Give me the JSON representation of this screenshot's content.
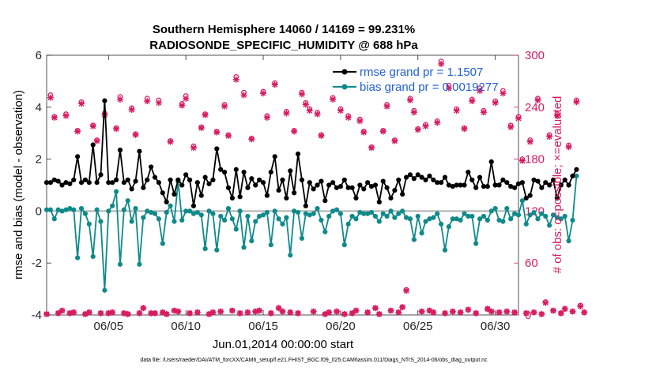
{
  "chart_data": {
    "type": "line",
    "title": [
      "Southern Hemisphere 14060 / 14169 = 99.231%",
      "RADIOSONDE_SPECIFIC_HUMIDITY @ 688 hPa"
    ],
    "xlabel": "Jun.01,2014 00:00:00 start",
    "ylabel_left": "rmse and bias (model - observation)",
    "ylabel_right": "# of obs: o=possible; ×=evaluated",
    "footnote": "data file: /Users/raeder/DAI/ATM_forcXX/CAM6_setup/f.e21.FHIST_BGC.f09_025.CAM6assim.011/Diags_NTrS_2014-06/obs_diag_output.nc",
    "xlim": [
      1,
      31.5
    ],
    "ylim_left": [
      -4,
      6
    ],
    "ylim_right": [
      0,
      300
    ],
    "x_ticks": [
      5,
      10,
      15,
      20,
      25,
      30
    ],
    "x_tick_labels": [
      "06/05",
      "06/10",
      "06/15",
      "06/20",
      "06/25",
      "06/30"
    ],
    "y_left_ticks": [
      -4,
      -2,
      0,
      2,
      4,
      6
    ],
    "y_left_tick_labels": [
      "-4",
      "-2",
      "0",
      "2",
      "4",
      "6"
    ],
    "y_right_ticks": [
      0,
      60,
      120,
      180,
      240,
      300
    ],
    "y_right_tick_labels": [
      "0",
      "60",
      "120",
      "180",
      "240",
      "300"
    ],
    "x_step_days": 0.25,
    "x_start": 1.0,
    "zero_line": 0,
    "colors": {
      "rmse": "#000000",
      "bias": "#0f8a8a",
      "obs": "#d81b60",
      "zero": "#b0b0b0"
    },
    "series": [
      {
        "name": "rmse grand pr = 1.1507",
        "axis": "left",
        "values": [
          1.1,
          1.1,
          1.2,
          1.15,
          1.0,
          1.1,
          1.05,
          1.2,
          2.1,
          1.1,
          1.2,
          1.1,
          2.55,
          1.1,
          1.4,
          4.25,
          1.1,
          1.1,
          1.2,
          2.35,
          1.1,
          1.2,
          0.85,
          1.15,
          2.3,
          0.9,
          1.2,
          1.7,
          1.3,
          1.1,
          0.7,
          0.35,
          1.2,
          0.65,
          1.2,
          1.0,
          1.4,
          1.2,
          0.2,
          1.1,
          0.6,
          1.3,
          1.05,
          1.2,
          2.4,
          1.6,
          1.5,
          0.9,
          0.5,
          1.6,
          0.55,
          1.5,
          0.9,
          1.25,
          1.0,
          1.2,
          1.1,
          0.6,
          1.5,
          2.1,
          0.8,
          1.2,
          0.5,
          1.55,
          0.7,
          2.2,
          1.2,
          0.2,
          1.1,
          0.85,
          1.0,
          1.15,
          0.4,
          1.0,
          1.1,
          0.9,
          0.95,
          1.2,
          0.9,
          0.9,
          0.5,
          1.0,
          0.85,
          1.1,
          0.95,
          1.0,
          0.35,
          1.15,
          0.9,
          0.5,
          0.8,
          1.2,
          0.65,
          1.3,
          1.4,
          1.25,
          1.4,
          1.3,
          1.2,
          1.35,
          1.2,
          1.1,
          1.1,
          1.3,
          1.0,
          0.95,
          1.0,
          1.0,
          1.0,
          1.5,
          1.2,
          0.9,
          1.3,
          0.95,
          0.95,
          1.9,
          1.0,
          1.0,
          1.2,
          1.1,
          0.95,
          0.9,
          1.05,
          1.1,
          0.5,
          0.6,
          1.2,
          1.15,
          0.9,
          1.1,
          1.0,
          1.2,
          0.5,
          1.0,
          1.2,
          1.0,
          1.35,
          1.6
        ]
      },
      {
        "name": "bias grand pr = 0.0019277",
        "axis": "left",
        "values": [
          0.05,
          0.05,
          -0.3,
          0.05,
          0.0,
          0.05,
          0.1,
          0.05,
          -1.8,
          0.1,
          -0.1,
          -0.5,
          -1.75,
          0.05,
          -0.4,
          -3.05,
          0.0,
          0.2,
          0.75,
          -2.05,
          0.05,
          0.4,
          -0.4,
          0.1,
          -2.05,
          -0.25,
          0.0,
          -0.05,
          -0.1,
          -0.3,
          -1.25,
          -0.05,
          0.2,
          -0.4,
          1.15,
          -0.35,
          0.0,
          0.0,
          -0.1,
          -0.05,
          -0.15,
          -1.45,
          0.0,
          -0.1,
          -1.5,
          -0.2,
          -0.35,
          0.1,
          -0.3,
          -0.7,
          0.0,
          -1.4,
          -0.2,
          -1.15,
          -0.4,
          -0.2,
          -0.15,
          -0.05,
          -1.3,
          0.0,
          -0.3,
          -0.5,
          -0.25,
          -1.7,
          0.0,
          -0.05,
          -1.05,
          -0.1,
          -0.15,
          -0.1,
          0.1,
          -0.35,
          -0.8,
          -0.2,
          0.0,
          0.05,
          -0.1,
          -1.3,
          -0.5,
          -0.2,
          -0.3,
          -0.05,
          -0.1,
          -0.1,
          -0.05,
          -0.2,
          -0.4,
          -0.1,
          -0.2,
          0.0,
          -0.25,
          -0.1,
          0.0,
          -0.25,
          -0.3,
          -1.1,
          -0.2,
          -0.85,
          -0.4,
          -0.3,
          -0.25,
          -0.1,
          -0.5,
          -1.5,
          -0.6,
          -0.3,
          -0.3,
          -0.35,
          -0.1,
          -0.2,
          -0.2,
          -1.25,
          -0.3,
          -0.2,
          -0.35,
          0.0,
          0.1,
          -0.35,
          -0.4,
          0.1,
          -0.3,
          -0.1,
          -0.15,
          0.4,
          -0.5,
          -0.15,
          -0.05,
          -0.3,
          -0.1,
          -0.2,
          -0.55,
          -0.15,
          -0.25,
          -0.3,
          -0.2,
          -1.15,
          -0.35,
          1.35
        ]
      },
      {
        "name": "obs possible",
        "axis": "right",
        "marker": "o",
        "values": [
          1,
          254,
          229,
          2,
          5,
          232,
          2,
          3,
          213,
          246,
          1,
          3,
          219,
          202,
          2,
          233,
          2,
          3,
          216,
          252,
          2,
          1,
          239,
          209,
          2,
          8,
          250,
          2,
          2,
          248,
          3,
          1,
          201,
          5,
          4,
          244,
          253,
          2,
          195,
          3,
          217,
          232,
          1,
          3,
          212,
          4,
          243,
          208,
          5,
          275,
          2,
          257,
          3,
          204,
          4,
          5,
          258,
          230,
          2,
          268,
          8,
          4,
          235,
          3,
          213,
          2,
          257,
          245,
          238,
          4,
          234,
          208,
          1,
          3,
          251,
          4,
          238,
          1,
          230,
          2,
          5,
          226,
          212,
          3,
          194,
          8,
          1,
          213,
          243,
          5,
          202,
          3,
          9,
          29,
          250,
          236,
          215,
          4,
          220,
          5,
          3,
          224,
          293,
          2,
          265,
          4,
          238,
          3,
          216,
          6,
          249,
          2,
          262,
          236,
          7,
          4,
          247,
          3,
          259,
          4,
          219,
          3,
          229,
          180,
          2,
          202,
          3,
          250,
          1,
          15,
          208,
          5,
          232,
          2,
          7,
          196,
          4,
          248,
          11,
          3
        ]
      },
      {
        "name": "obs evaluated",
        "axis": "right",
        "marker": "x",
        "values": [
          1,
          251,
          228,
          2,
          5,
          230,
          2,
          3,
          212,
          244,
          1,
          3,
          218,
          201,
          2,
          231,
          2,
          3,
          215,
          249,
          2,
          1,
          237,
          208,
          2,
          8,
          247,
          2,
          2,
          245,
          3,
          1,
          200,
          5,
          4,
          242,
          250,
          2,
          193,
          3,
          216,
          231,
          1,
          3,
          211,
          4,
          241,
          207,
          5,
          272,
          2,
          254,
          3,
          203,
          4,
          5,
          256,
          228,
          2,
          266,
          8,
          4,
          233,
          3,
          212,
          2,
          255,
          243,
          236,
          4,
          232,
          207,
          1,
          3,
          249,
          4,
          236,
          1,
          228,
          2,
          5,
          224,
          211,
          3,
          193,
          8,
          1,
          212,
          241,
          5,
          201,
          3,
          9,
          28,
          248,
          234,
          214,
          4,
          218,
          5,
          3,
          222,
          290,
          2,
          262,
          4,
          236,
          3,
          215,
          6,
          247,
          2,
          259,
          234,
          7,
          4,
          245,
          3,
          256,
          4,
          217,
          3,
          227,
          178,
          2,
          200,
          3,
          248,
          1,
          14,
          206,
          5,
          230,
          2,
          7,
          194,
          4,
          246,
          10,
          3
        ]
      }
    ]
  }
}
